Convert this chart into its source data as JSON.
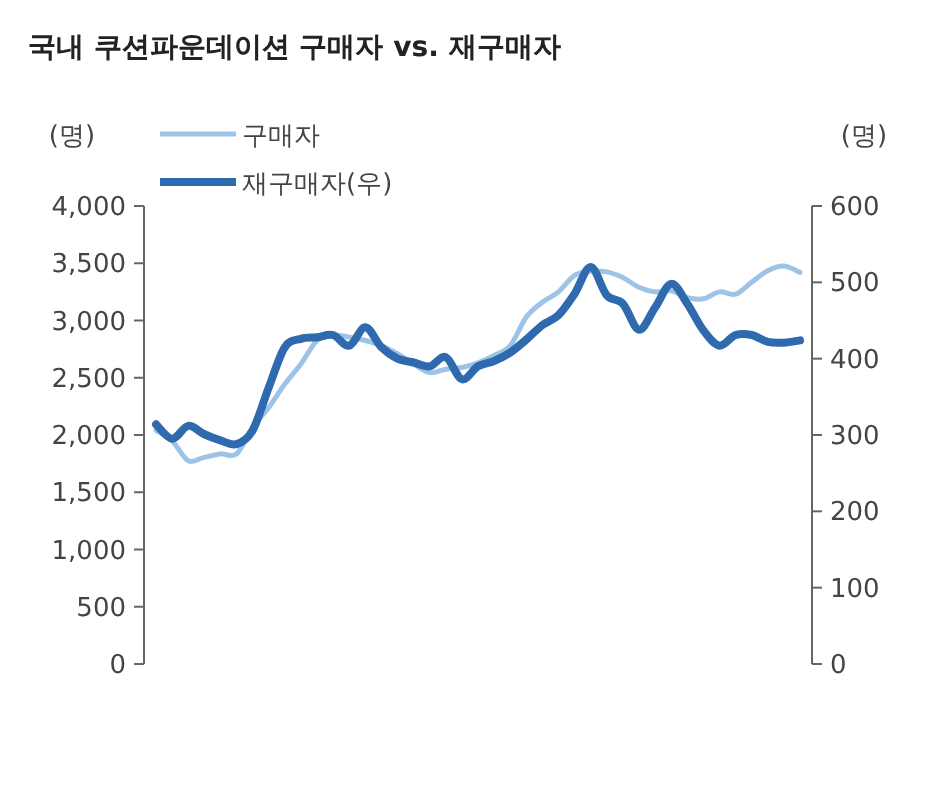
{
  "chart_data": {
    "type": "line",
    "title": "국내 쿠션파운데이션 구매자 vs. 재구매자",
    "ylabel": "(명)",
    "y2label": "(명)",
    "categories": [
      null,
      null,
      null,
      null,
      null,
      null,
      null,
      null,
      null,
      null,
      null,
      null,
      null,
      null,
      null,
      null,
      null,
      null,
      null,
      null,
      null,
      null,
      null,
      null,
      null,
      null,
      null,
      null,
      null,
      null,
      null,
      null,
      null,
      null,
      null,
      null,
      null,
      null,
      null,
      null,
      null
    ],
    "series": [
      {
        "name": "구매자",
        "color": "#9dc3e6",
        "values": [
          2040,
          1950,
          1775,
          1805,
          1835,
          1835,
          2065,
          2240,
          2445,
          2620,
          2825,
          2870,
          2855,
          2825,
          2780,
          2710,
          2620,
          2545,
          2575,
          2590,
          2630,
          2695,
          2780,
          3030,
          3160,
          3250,
          3395,
          3430,
          3425,
          3375,
          3290,
          3250,
          3260,
          3200,
          3190,
          3250,
          3230,
          3335,
          3435,
          3475,
          3420
        ]
      },
      {
        "name": "재구매자(우)",
        "color": "#2e6aad",
        "axis": "y2",
        "values": [
          314,
          295,
          312,
          301,
          293,
          288,
          306,
          362,
          415,
          426,
          428,
          431,
          417,
          441,
          415,
          400,
          395,
          390,
          402,
          373,
          390,
          397,
          408,
          425,
          444,
          457,
          485,
          520,
          483,
          472,
          438,
          467,
          498,
          472,
          437,
          417,
          431,
          431,
          422,
          421,
          424
        ]
      }
    ],
    "ylim": [
      0,
      4000
    ],
    "yticks": [
      {
        "value": 0,
        "label": "0"
      },
      {
        "value": 500,
        "label": "500"
      },
      {
        "value": 1000,
        "label": "1,000"
      },
      {
        "value": 1500,
        "label": "1,500"
      },
      {
        "value": 2000,
        "label": "2,000"
      },
      {
        "value": 2500,
        "label": "2,500"
      },
      {
        "value": 3000,
        "label": "3,000"
      },
      {
        "value": 3500,
        "label": "3,500"
      },
      {
        "value": 4000,
        "label": "4,000"
      }
    ],
    "y2lim": [
      0,
      600
    ],
    "y2ticks": [
      0,
      100,
      200,
      300,
      400,
      500,
      600
    ],
    "grid": false,
    "legend": "top left",
    "line_style": "solid"
  }
}
